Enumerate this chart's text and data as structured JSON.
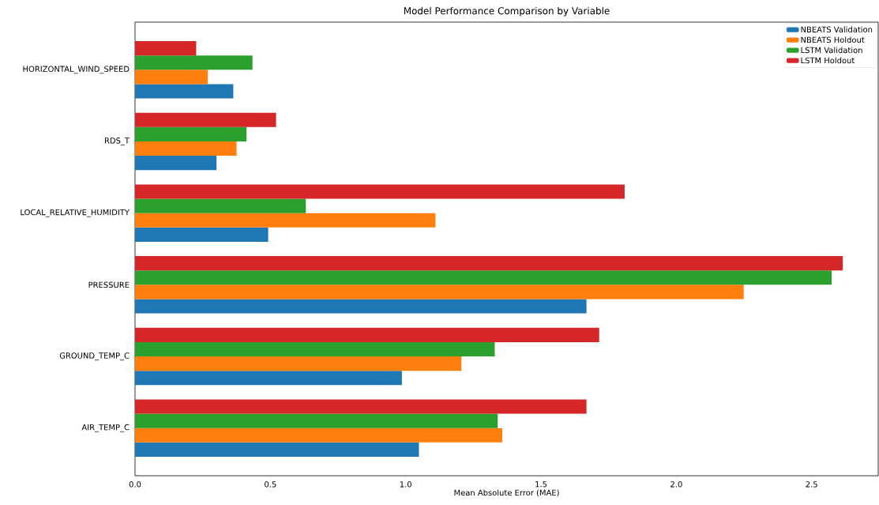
{
  "chart_data": {
    "type": "bar",
    "orientation": "horizontal",
    "title": "Model Performance Comparison by Variable",
    "xlabel": "Mean Absolute Error (MAE)",
    "categories": [
      "HORIZONTAL_WIND_SPEED",
      "RDS_T",
      "LOCAL_RELATIVE_HUMIDITY",
      "PRESSURE",
      "GROUND_TEMP_C",
      "AIR_TEMP_C"
    ],
    "series": [
      {
        "name": "NBEATS Validation",
        "color": "#1f77b4",
        "values": [
          0.363,
          0.301,
          0.492,
          1.668,
          0.986,
          1.049
        ]
      },
      {
        "name": "NBEATS Holdout",
        "color": "#ff7f0e",
        "values": [
          0.269,
          0.375,
          1.11,
          2.249,
          1.206,
          1.357
        ]
      },
      {
        "name": "LSTM Validation",
        "color": "#2ca02c",
        "values": [
          0.434,
          0.412,
          0.631,
          2.574,
          1.329,
          1.34
        ]
      },
      {
        "name": "LSTM Holdout",
        "color": "#d62728",
        "values": [
          0.226,
          0.521,
          1.809,
          2.615,
          1.715,
          1.668
        ]
      }
    ],
    "xlim": [
      0,
      2.746
    ],
    "xticks": [
      {
        "value": 0,
        "label": "0.0"
      },
      {
        "value": 0.5,
        "label": "0.5"
      },
      {
        "value": 1,
        "label": "1.0"
      },
      {
        "value": 1.5,
        "label": "1.5"
      },
      {
        "value": 2,
        "label": "2.0"
      },
      {
        "value": 2.5,
        "label": "2.5"
      }
    ],
    "legend": "top right"
  }
}
